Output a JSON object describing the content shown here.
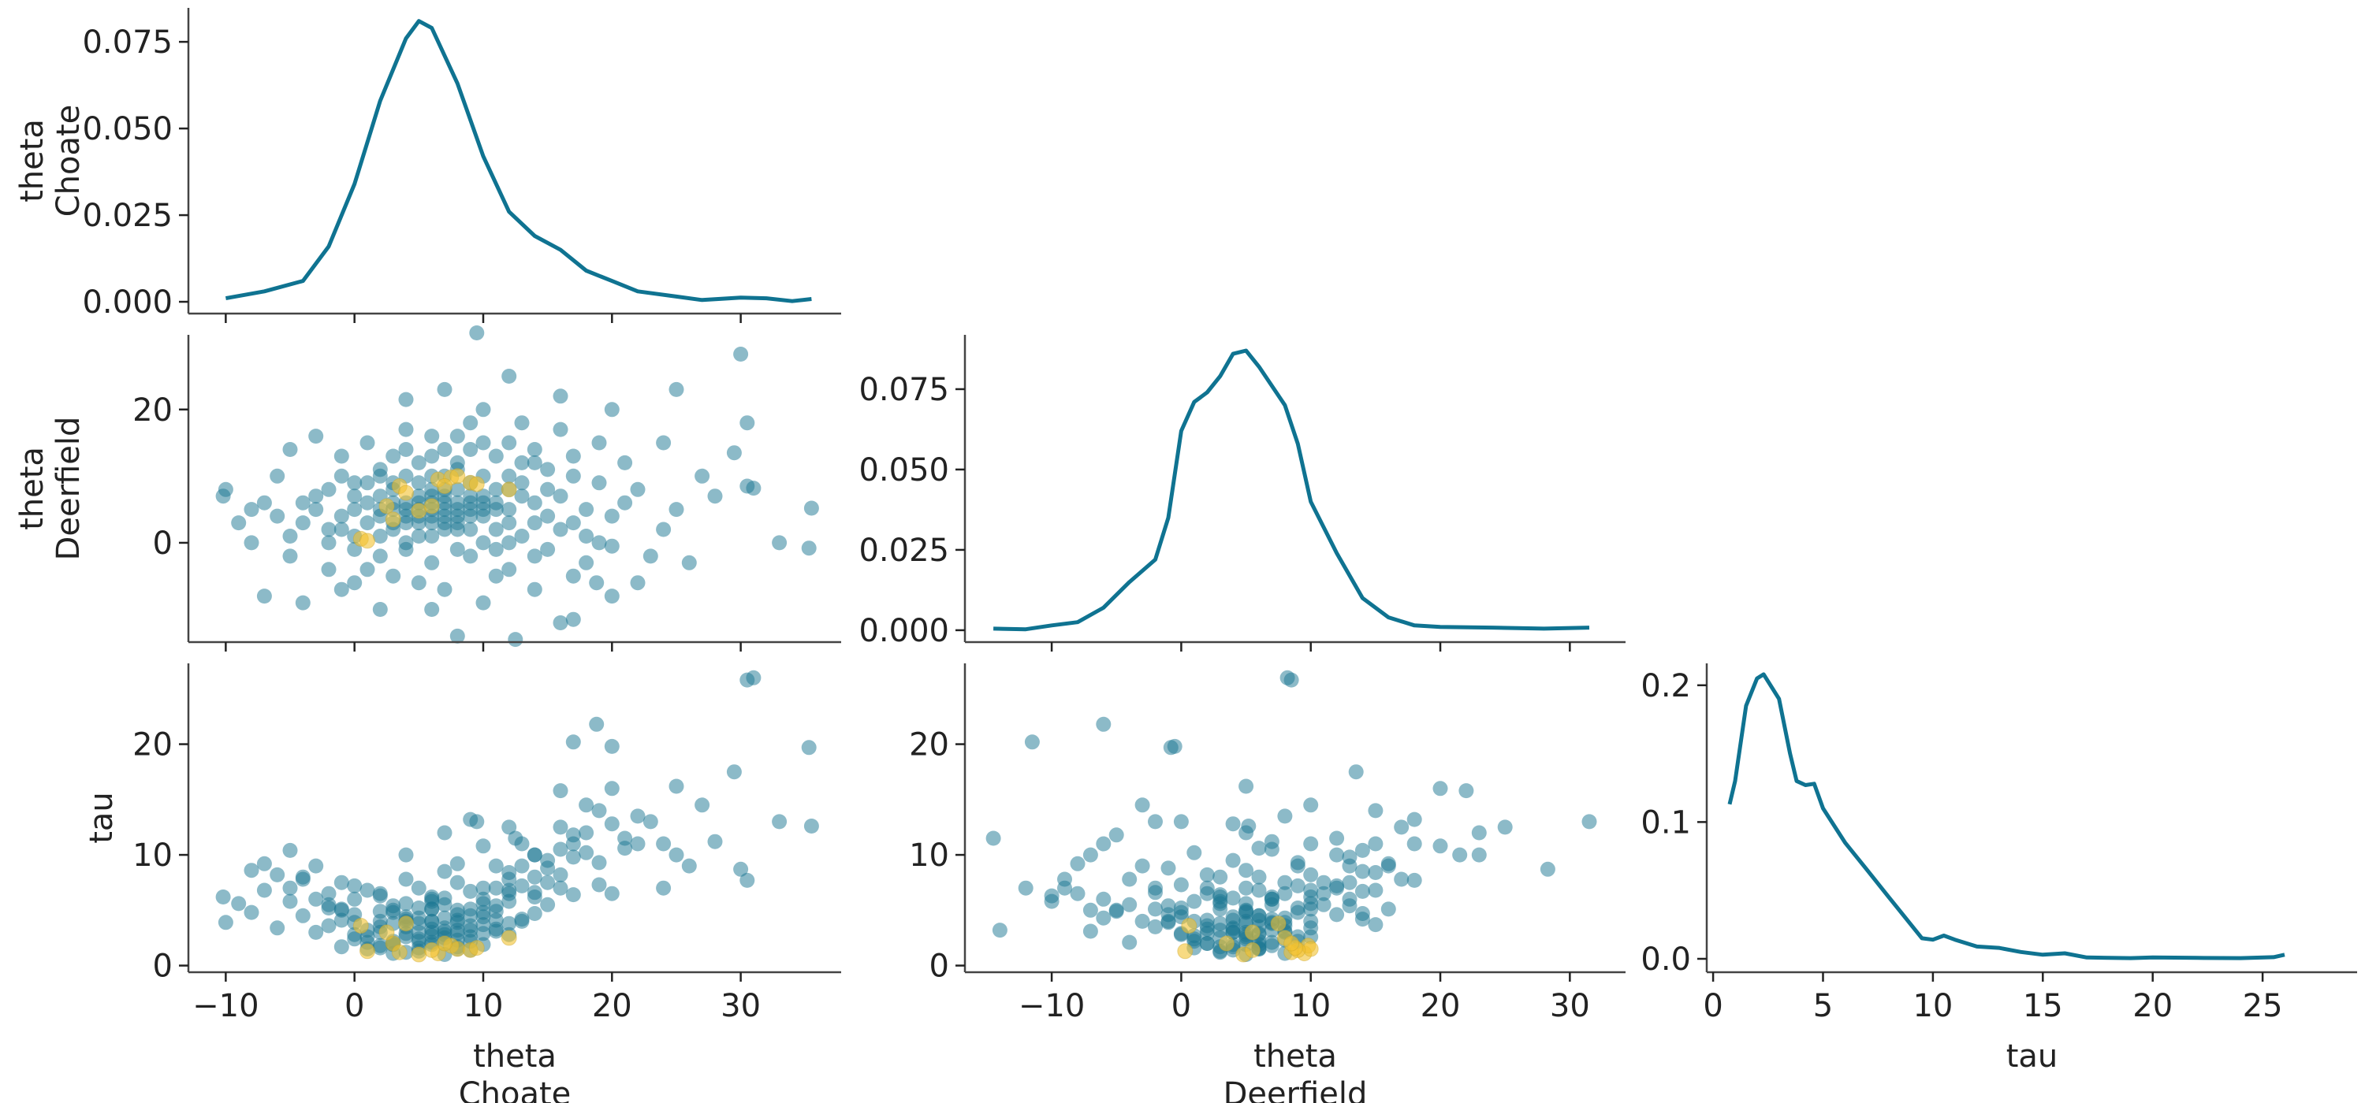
{
  "chart_data": {
    "type": "pair-plot",
    "colors": {
      "kde": "#0f7391",
      "points": "#1a7592",
      "divergences": "#f2c12e",
      "spine": "#444444"
    },
    "variables": [
      {
        "key": "choate",
        "label_lines": [
          "theta",
          "Choate"
        ]
      },
      {
        "key": "deerfield",
        "label_lines": [
          "theta",
          "Deerfield"
        ]
      },
      {
        "key": "tau",
        "label_lines": [
          "tau"
        ]
      }
    ],
    "panels": [
      {
        "type": "kde",
        "row": 0,
        "col": 0,
        "var": "choate",
        "xlim": [
          -12.9,
          37.8
        ],
        "ylim": [
          -0.0034,
          0.0848
        ],
        "yticks": [
          0.0,
          0.025,
          0.05,
          0.075
        ],
        "ytick_labels": [
          "0.000",
          "0.025",
          "0.050",
          "0.075"
        ],
        "xticks": [
          -10,
          0,
          10,
          20,
          30
        ],
        "xtick_labels": [],
        "ylabel_lines": [
          "theta",
          "Choate"
        ]
      },
      {
        "type": "scatter",
        "row": 1,
        "col": 0,
        "x": "choate",
        "y": "deerfield",
        "xlim": [
          -12.9,
          37.8
        ],
        "ylim": [
          -14.9,
          31.2
        ],
        "yticks": [
          0,
          20
        ],
        "ytick_labels": [
          "0",
          "20"
        ],
        "xticks": [
          -10,
          0,
          10,
          20,
          30
        ],
        "xtick_labels": [],
        "ylabel_lines": [
          "theta",
          "Deerfield"
        ]
      },
      {
        "type": "kde",
        "row": 1,
        "col": 1,
        "var": "deerfield",
        "xlim": [
          -16.7,
          34.3
        ],
        "ylim": [
          -0.0037,
          0.0919
        ],
        "yticks": [
          0.0,
          0.025,
          0.05,
          0.075
        ],
        "ytick_labels": [
          "0.000",
          "0.025",
          "0.050",
          "0.075"
        ],
        "xticks": [
          -10,
          0,
          10,
          20,
          30
        ],
        "xtick_labels": []
      },
      {
        "type": "scatter",
        "row": 2,
        "col": 0,
        "x": "choate",
        "y": "tau",
        "xlim": [
          -12.9,
          37.8
        ],
        "ylim": [
          -0.6,
          27.3
        ],
        "yticks": [
          0,
          10,
          20
        ],
        "ytick_labels": [
          "0",
          "10",
          "20"
        ],
        "xticks": [
          -10,
          0,
          10,
          20,
          30
        ],
        "xtick_labels": [
          "−10",
          "0",
          "10",
          "20",
          "30"
        ],
        "ylabel_lines": [
          "tau"
        ],
        "xlabel_lines": [
          "theta",
          "Choate"
        ]
      },
      {
        "type": "scatter",
        "row": 2,
        "col": 1,
        "x": "deerfield",
        "y": "tau",
        "xlim": [
          -16.7,
          34.3
        ],
        "ylim": [
          -0.6,
          27.3
        ],
        "yticks": [
          0,
          10,
          20
        ],
        "ytick_labels": [
          "0",
          "10",
          "20"
        ],
        "xticks": [
          -10,
          0,
          10,
          20,
          30
        ],
        "xtick_labels": [
          "−10",
          "0",
          "10",
          "20",
          "30"
        ],
        "xlabel_lines": [
          "theta",
          "Deerfield"
        ]
      },
      {
        "type": "kde",
        "row": 2,
        "col": 2,
        "var": "tau",
        "xlim": [
          -0.29,
          29.3
        ],
        "ylim": [
          -0.0098,
          0.216
        ],
        "yticks": [
          0.0,
          0.1,
          0.2
        ],
        "ytick_labels": [
          "0.0",
          "0.1",
          "0.2"
        ],
        "xticks": [
          0,
          5,
          10,
          15,
          20,
          25
        ],
        "xtick_labels": [
          "0",
          "5",
          "10",
          "15",
          "20",
          "25"
        ],
        "xlabel_lines": [
          "tau"
        ]
      }
    ],
    "kde": {
      "choate": {
        "x": [
          -10,
          -7,
          -4,
          -2,
          0,
          2,
          4,
          5,
          6,
          8,
          10,
          12,
          14,
          16,
          18,
          20,
          22,
          25,
          27,
          30,
          32,
          34,
          35.5
        ],
        "y": [
          0.001,
          0.003,
          0.006,
          0.016,
          0.034,
          0.058,
          0.076,
          0.081,
          0.079,
          0.063,
          0.042,
          0.026,
          0.019,
          0.015,
          0.009,
          0.006,
          0.003,
          0.0015,
          0.0005,
          0.0012,
          0.001,
          0.0002,
          0.0008
        ]
      },
      "deerfield": {
        "x": [
          -14.5,
          -12,
          -10,
          -8,
          -6,
          -4,
          -2,
          -1,
          0,
          1,
          2,
          3,
          4,
          5,
          6,
          8,
          9,
          10,
          12,
          14,
          16,
          18,
          20,
          24,
          28,
          31.5
        ],
        "y": [
          0.0005,
          0.0003,
          0.0015,
          0.0025,
          0.007,
          0.015,
          0.022,
          0.035,
          0.062,
          0.071,
          0.074,
          0.079,
          0.086,
          0.087,
          0.082,
          0.07,
          0.058,
          0.04,
          0.024,
          0.01,
          0.004,
          0.0015,
          0.001,
          0.0008,
          0.0005,
          0.0008
        ]
      },
      "tau": {
        "x": [
          0.75,
          1,
          1.5,
          2,
          2.3,
          3,
          3.5,
          3.8,
          4.2,
          4.6,
          5,
          6,
          7,
          8,
          9,
          9.5,
          10,
          10.5,
          11,
          12,
          13,
          14,
          15,
          16,
          17,
          19,
          20,
          22,
          24,
          25.5,
          26
        ],
        "y": [
          0.113,
          0.13,
          0.185,
          0.205,
          0.208,
          0.19,
          0.15,
          0.13,
          0.127,
          0.128,
          0.11,
          0.085,
          0.065,
          0.045,
          0.025,
          0.015,
          0.014,
          0.017,
          0.014,
          0.009,
          0.008,
          0.005,
          0.003,
          0.004,
          0.001,
          0.0005,
          0.001,
          0.0007,
          0.0005,
          0.0012,
          0.003
        ]
      }
    },
    "sample_columns": [
      "choate",
      "deerfield",
      "tau"
    ],
    "samples": [
      [
        30.5,
        8.5,
        25.8
      ],
      [
        31,
        8.2,
        26
      ],
      [
        35.3,
        -0.8,
        19.7
      ],
      [
        35.5,
        5.2,
        12.6
      ],
      [
        30,
        28.3,
        8.7
      ],
      [
        29.5,
        13.5,
        17.5
      ],
      [
        30.5,
        18,
        7.7
      ],
      [
        -10.2,
        7,
        6.2
      ],
      [
        9.5,
        31.5,
        13
      ],
      [
        12.5,
        -14.5,
        11.5
      ],
      [
        18.8,
        -6,
        21.8
      ],
      [
        17,
        -11.5,
        20.2
      ],
      [
        20,
        -0.5,
        19.8
      ],
      [
        25,
        23,
        10
      ],
      [
        5,
        4,
        3
      ],
      [
        6,
        5,
        4
      ],
      [
        7,
        3,
        2.5
      ],
      [
        4,
        6,
        3.5
      ],
      [
        8,
        5,
        5
      ],
      [
        3,
        2,
        2
      ],
      [
        2,
        4,
        3
      ],
      [
        9,
        6,
        4.5
      ],
      [
        10,
        7,
        6
      ],
      [
        6,
        8,
        3
      ],
      [
        5,
        1,
        2.2
      ],
      [
        4,
        -1,
        4
      ],
      [
        7,
        7,
        5.5
      ],
      [
        11,
        5,
        7
      ],
      [
        12,
        8,
        6.5
      ],
      [
        1,
        3,
        3.2
      ],
      [
        0,
        5,
        2.8
      ],
      [
        -1,
        2,
        4.1
      ],
      [
        -2,
        0,
        5.2
      ],
      [
        3,
        9,
        4.8
      ],
      [
        6,
        10,
        6.2
      ],
      [
        8,
        11,
        7.5
      ],
      [
        9,
        2,
        3.6
      ],
      [
        10,
        0,
        4.4
      ],
      [
        12,
        3,
        5.8
      ],
      [
        14,
        6,
        8
      ],
      [
        13,
        9,
        9
      ],
      [
        15,
        4,
        9.5
      ],
      [
        16,
        7,
        10.5
      ],
      [
        17,
        10,
        11
      ],
      [
        18,
        5,
        12
      ],
      [
        14,
        12,
        10
      ],
      [
        11,
        13,
        9
      ],
      [
        7,
        14,
        8.5
      ],
      [
        5,
        12,
        7
      ],
      [
        2,
        11,
        6.5
      ],
      [
        0,
        9,
        7.2
      ],
      [
        -3,
        7,
        6
      ],
      [
        -4,
        3,
        8
      ],
      [
        -5,
        -2,
        7
      ],
      [
        -2,
        -4,
        5.5
      ],
      [
        0,
        -6,
        6
      ],
      [
        3,
        -5,
        5
      ],
      [
        6,
        -3,
        4
      ],
      [
        9,
        -2,
        5.1
      ],
      [
        12,
        -4,
        7.8
      ],
      [
        15,
        -1,
        8.8
      ],
      [
        18,
        1,
        10.2
      ],
      [
        20,
        4,
        12.8
      ],
      [
        22,
        8,
        13.5
      ],
      [
        21,
        12,
        11.5
      ],
      [
        19,
        15,
        14
      ],
      [
        16,
        17,
        12.5
      ],
      [
        13,
        18,
        11
      ],
      [
        10,
        20,
        10.8
      ],
      [
        8,
        16,
        9.2
      ],
      [
        4,
        17,
        7.8
      ],
      [
        1,
        15,
        6.8
      ],
      [
        -1,
        13,
        7.5
      ],
      [
        -6,
        10,
        8.2
      ],
      [
        -8,
        5,
        8.6
      ],
      [
        -7,
        -8,
        9.2
      ],
      [
        -4,
        -9,
        7.8
      ],
      [
        2,
        -10,
        6.3
      ],
      [
        6,
        -10,
        5.8
      ],
      [
        10,
        -9,
        7
      ],
      [
        14,
        -7,
        10
      ],
      [
        17,
        -5,
        11.8
      ],
      [
        23,
        -2,
        13
      ],
      [
        25,
        5,
        16.2
      ],
      [
        27,
        10,
        14.5
      ],
      [
        24,
        15,
        11
      ],
      [
        20,
        20,
        16
      ],
      [
        16,
        22,
        15.8
      ],
      [
        12,
        25,
        12.5
      ],
      [
        4,
        21.5,
        10
      ],
      [
        7,
        23,
        12
      ],
      [
        -3,
        16,
        9
      ],
      [
        -5,
        14,
        10.4
      ],
      [
        1,
        6,
        1.5
      ],
      [
        2,
        7,
        1.8
      ],
      [
        4,
        3,
        1.2
      ],
      [
        5,
        6,
        1.6
      ],
      [
        7,
        2,
        2
      ],
      [
        8,
        8,
        2.3
      ],
      [
        9,
        4,
        1.4
      ],
      [
        3,
        5,
        1.9
      ],
      [
        6,
        1,
        2.7
      ],
      [
        10,
        6,
        2.9
      ],
      [
        11,
        2,
        3.3
      ],
      [
        12,
        5,
        3.8
      ],
      [
        13,
        7,
        4.2
      ],
      [
        0,
        1,
        2.4
      ],
      [
        -1,
        4,
        1.7
      ],
      [
        -3,
        5,
        3
      ],
      [
        -4,
        6,
        4.5
      ],
      [
        -2,
        8,
        3.6
      ],
      [
        1,
        9,
        2.6
      ],
      [
        2,
        10,
        4
      ],
      [
        5,
        9,
        5.2
      ],
      [
        7,
        10,
        3.4
      ],
      [
        8,
        12,
        4.6
      ],
      [
        10,
        10,
        5.6
      ],
      [
        12,
        10,
        6.8
      ],
      [
        13,
        12,
        7.2
      ],
      [
        14,
        3,
        6.2
      ],
      [
        15,
        8,
        7.5
      ],
      [
        16,
        2,
        8.2
      ],
      [
        14,
        -2,
        6.6
      ],
      [
        11,
        -1,
        5.4
      ],
      [
        8,
        -1,
        3.9
      ],
      [
        4,
        0,
        2.9
      ],
      [
        2,
        -2,
        3.5
      ],
      [
        0,
        -1,
        4.6
      ],
      [
        -2,
        2,
        6.5
      ],
      [
        -5,
        1,
        5.8
      ],
      [
        -6,
        4,
        3.4
      ],
      [
        -8,
        0,
        4.8
      ],
      [
        -7,
        6,
        6.8
      ],
      [
        3,
        13,
        5.4
      ],
      [
        6,
        13,
        6
      ],
      [
        9,
        14,
        6.7
      ],
      [
        12,
        15,
        8.4
      ],
      [
        17,
        13,
        9.8
      ],
      [
        19,
        9,
        9.3
      ],
      [
        21,
        6,
        10.6
      ],
      [
        18,
        -3,
        14.5
      ],
      [
        9,
        18,
        13.2
      ],
      [
        5,
        -6,
        4.3
      ],
      [
        7,
        -7,
        3.1
      ],
      [
        1,
        -4,
        2.1
      ],
      [
        -1,
        -7,
        5
      ],
      [
        11,
        -5,
        4.9
      ],
      [
        13,
        1,
        4
      ],
      [
        15,
        11,
        5.5
      ],
      [
        17,
        3,
        6.4
      ],
      [
        19,
        0,
        7.3
      ],
      [
        3,
        8,
        1.1
      ],
      [
        5,
        3,
        1.3
      ],
      [
        6,
        7,
        2.1
      ],
      [
        8,
        3,
        1.7
      ],
      [
        9,
        9,
        2.2
      ],
      [
        10,
        4,
        1.9
      ],
      [
        4,
        10,
        2.6
      ],
      [
        2,
        1,
        1.6
      ],
      [
        7,
        5,
        1.0
      ],
      [
        11,
        8,
        3.1
      ],
      [
        12,
        0,
        2.8
      ],
      [
        0,
        7,
        3.9
      ],
      [
        -1,
        10,
        5.1
      ],
      [
        4,
        14,
        4.2
      ],
      [
        6,
        16,
        5.1
      ],
      [
        10,
        15,
        3.7
      ],
      [
        14,
        14,
        4.7
      ],
      [
        -9,
        3,
        5.6
      ],
      [
        -10,
        8,
        3.9
      ],
      [
        24,
        2,
        7
      ],
      [
        26,
        -3,
        9
      ],
      [
        28,
        7,
        11.2
      ],
      [
        33,
        0,
        13
      ],
      [
        22,
        -6,
        11
      ],
      [
        20,
        -8,
        6.5
      ],
      [
        16,
        -12,
        7
      ],
      [
        8,
        -14,
        3.2
      ],
      [
        6,
        4,
        3.3
      ],
      [
        7,
        6,
        2.8
      ],
      [
        8,
        4,
        4.1
      ],
      [
        5,
        5,
        2.4
      ],
      [
        4,
        4,
        4.4
      ],
      [
        9,
        7,
        3.2
      ],
      [
        6,
        3,
        5.1
      ],
      [
        3,
        6,
        2.2
      ],
      [
        10,
        5,
        4.8
      ],
      [
        7,
        8,
        4.3
      ],
      [
        5,
        7,
        3.8
      ],
      [
        8,
        6,
        1.5
      ],
      [
        6,
        6,
        1.9
      ],
      [
        4,
        5,
        5.6
      ],
      [
        9,
        5,
        2.6
      ],
      [
        11,
        6,
        4.1
      ],
      [
        2,
        5,
        4.9
      ],
      [
        3,
        3,
        3.8
      ],
      [
        7,
        4,
        6.1
      ],
      [
        8,
        2,
        2.9
      ]
    ],
    "divergences": [
      [
        0.5,
        0.6,
        3.6
      ],
      [
        1.0,
        0.3,
        1.3
      ],
      [
        2.5,
        5.5,
        3.0
      ],
      [
        3.0,
        3.5,
        2.0
      ],
      [
        3.5,
        8.5,
        1.2
      ],
      [
        4.0,
        7.5,
        3.8
      ],
      [
        5.0,
        4.8,
        1.0
      ],
      [
        6.5,
        9.5,
        1.1
      ],
      [
        7.5,
        9.8,
        1.8
      ],
      [
        8.0,
        10.0,
        1.5
      ],
      [
        9.0,
        9.0,
        1.4
      ],
      [
        9.5,
        8.8,
        1.6
      ],
      [
        12.0,
        8.0,
        2.5
      ],
      [
        7.0,
        8.5,
        2.0
      ],
      [
        6.0,
        5.5,
        1.4
      ]
    ]
  }
}
